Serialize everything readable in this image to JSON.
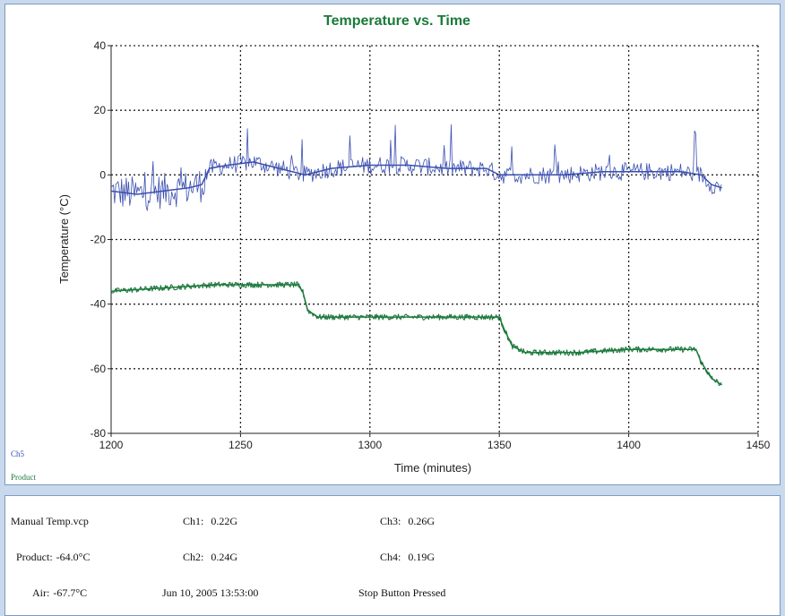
{
  "colors": {
    "background": "#c8d9ee",
    "title": "#1a7a3a",
    "series_air": "#3a4fb0",
    "series_product": "#1e7a3e",
    "grid": "#222222",
    "panel_border": "#7f99bf"
  },
  "chart_data": {
    "type": "line",
    "title": "Temperature vs. Time",
    "xlabel": "Time (minutes)",
    "ylabel": "Temperature (°C)",
    "xlim": [
      1200,
      1450
    ],
    "ylim": [
      -80,
      40
    ],
    "xticks": [
      "1200",
      "1250",
      "1300",
      "1350",
      "1400",
      "1450"
    ],
    "yticks": [
      "40",
      "20",
      "0",
      "-20",
      "-40",
      "-60",
      "-80"
    ],
    "grid": true,
    "series": [
      {
        "name": "Ch5",
        "color": "#3a4fb0",
        "x": [
          1200,
          1210,
          1220,
          1230,
          1235,
          1238,
          1245,
          1255,
          1265,
          1275,
          1285,
          1300,
          1315,
          1330,
          1345,
          1350,
          1360,
          1375,
          1390,
          1405,
          1420,
          1428,
          1432,
          1436
        ],
        "y": [
          -5,
          -6,
          -5,
          -4,
          -3,
          2,
          3,
          4,
          2,
          0,
          2,
          3,
          3,
          2,
          2,
          0,
          0,
          0,
          1,
          1,
          1,
          0,
          -3,
          -4
        ]
      },
      {
        "name": "Product",
        "color": "#1e7a3e",
        "x": [
          1200,
          1220,
          1240,
          1260,
          1272,
          1274,
          1276,
          1280,
          1300,
          1320,
          1340,
          1350,
          1352,
          1355,
          1360,
          1380,
          1400,
          1420,
          1426,
          1428,
          1432,
          1436
        ],
        "y": [
          -36,
          -35,
          -34,
          -34,
          -34,
          -36,
          -42,
          -44,
          -44,
          -44,
          -44,
          -44,
          -48,
          -53,
          -55,
          -55,
          -54,
          -54,
          -54,
          -58,
          -63,
          -65
        ]
      }
    ]
  },
  "info": {
    "filename": "Manual Temp.vcp",
    "product_label": "Product:",
    "product_value": "-64.0°C",
    "air_label": "Air:",
    "air_value": "-67.7°C",
    "ch1_label": "Ch1:",
    "ch1_value": "0.22G",
    "ch2_label": "Ch2:",
    "ch2_value": "0.24G",
    "ch3_label": "Ch3:",
    "ch3_value": "0.26G",
    "ch4_label": "Ch4:",
    "ch4_value": "0.19G",
    "datetime": "Jun 10, 2005 13:53:00",
    "status": "Stop Button Pressed"
  }
}
